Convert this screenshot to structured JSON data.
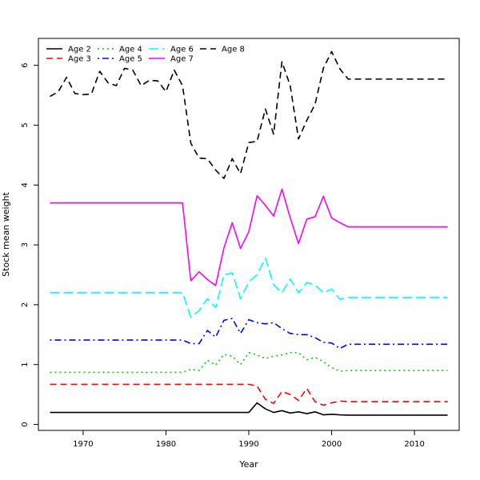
{
  "chart_data": {
    "type": "line",
    "xlabel": "Year",
    "ylabel": "Stock mean weight",
    "xlim": [
      1964.6,
      2015.4
    ],
    "ylim": [
      -0.1,
      6.45
    ],
    "x_ticks": [
      1970,
      1980,
      1990,
      2000,
      2010
    ],
    "x_tick_labels": [
      "1970",
      "1980",
      "1990",
      "2000",
      "2010"
    ],
    "y_ticks": [
      0,
      1,
      2,
      3,
      4,
      5,
      6
    ],
    "y_tick_labels": [
      "0",
      "1",
      "2",
      "3",
      "4",
      "5",
      "6"
    ],
    "legend_position": "top-left",
    "x": [
      1966,
      1967,
      1968,
      1969,
      1970,
      1971,
      1972,
      1973,
      1974,
      1975,
      1976,
      1977,
      1978,
      1979,
      1980,
      1981,
      1982,
      1983,
      1984,
      1985,
      1986,
      1987,
      1988,
      1989,
      1990,
      1991,
      1992,
      1993,
      1994,
      1995,
      1996,
      1997,
      1998,
      1999,
      2000,
      2001,
      2002,
      2003,
      2004,
      2005,
      2006,
      2007,
      2008,
      2009,
      2010,
      2011,
      2012,
      2013,
      2014
    ],
    "series": [
      {
        "name": "Age 2",
        "color": "#000000",
        "dash": "solid",
        "values": [
          0.2,
          0.2,
          0.2,
          0.2,
          0.2,
          0.2,
          0.2,
          0.2,
          0.2,
          0.2,
          0.2,
          0.2,
          0.2,
          0.2,
          0.2,
          0.2,
          0.2,
          0.2,
          0.2,
          0.2,
          0.2,
          0.2,
          0.2,
          0.2,
          0.2,
          0.36,
          0.26,
          0.2,
          0.23,
          0.19,
          0.21,
          0.18,
          0.21,
          0.16,
          0.17,
          0.16,
          0.155,
          0.155,
          0.155,
          0.155,
          0.155,
          0.155,
          0.155,
          0.155,
          0.155,
          0.155,
          0.155,
          0.155,
          0.155
        ]
      },
      {
        "name": "Age 3",
        "color": "#ff0000",
        "dash": "dashed",
        "values": [
          0.67,
          0.67,
          0.67,
          0.67,
          0.67,
          0.67,
          0.67,
          0.67,
          0.67,
          0.67,
          0.67,
          0.67,
          0.67,
          0.67,
          0.67,
          0.67,
          0.67,
          0.67,
          0.67,
          0.67,
          0.67,
          0.67,
          0.67,
          0.67,
          0.67,
          0.64,
          0.42,
          0.35,
          0.55,
          0.5,
          0.4,
          0.6,
          0.38,
          0.32,
          0.36,
          0.39,
          0.38,
          0.38,
          0.38,
          0.38,
          0.38,
          0.38,
          0.38,
          0.38,
          0.38,
          0.38,
          0.38,
          0.38,
          0.38
        ]
      },
      {
        "name": "Age 4",
        "color": "#00cd00",
        "dash": "dotted",
        "values": [
          0.87,
          0.87,
          0.87,
          0.87,
          0.87,
          0.87,
          0.87,
          0.87,
          0.87,
          0.87,
          0.87,
          0.87,
          0.87,
          0.87,
          0.87,
          0.87,
          0.87,
          0.92,
          0.9,
          1.07,
          0.99,
          1.17,
          1.14,
          1.0,
          1.2,
          1.16,
          1.1,
          1.14,
          1.16,
          1.2,
          1.2,
          1.08,
          1.12,
          1.05,
          0.95,
          0.89,
          0.9,
          0.9,
          0.9,
          0.9,
          0.9,
          0.9,
          0.9,
          0.9,
          0.9,
          0.9,
          0.9,
          0.9,
          0.9
        ]
      },
      {
        "name": "Age 5",
        "color": "#0000ff",
        "dash": "dashdot",
        "values": [
          1.41,
          1.41,
          1.41,
          1.41,
          1.41,
          1.41,
          1.41,
          1.41,
          1.41,
          1.41,
          1.41,
          1.41,
          1.41,
          1.41,
          1.41,
          1.41,
          1.41,
          1.35,
          1.35,
          1.57,
          1.46,
          1.74,
          1.77,
          1.52,
          1.75,
          1.7,
          1.68,
          1.7,
          1.6,
          1.52,
          1.5,
          1.5,
          1.45,
          1.37,
          1.36,
          1.27,
          1.34,
          1.34,
          1.34,
          1.34,
          1.34,
          1.34,
          1.34,
          1.34,
          1.34,
          1.34,
          1.34,
          1.34,
          1.34
        ]
      },
      {
        "name": "Age 6",
        "color": "#00ffff",
        "dash": "longdash",
        "values": [
          2.2,
          2.2,
          2.2,
          2.2,
          2.2,
          2.2,
          2.2,
          2.2,
          2.2,
          2.2,
          2.2,
          2.2,
          2.2,
          2.2,
          2.2,
          2.2,
          2.2,
          1.79,
          1.9,
          2.1,
          1.95,
          2.5,
          2.53,
          2.1,
          2.38,
          2.5,
          2.78,
          2.33,
          2.2,
          2.43,
          2.2,
          2.37,
          2.33,
          2.2,
          2.26,
          2.09,
          2.12,
          2.12,
          2.12,
          2.12,
          2.12,
          2.12,
          2.12,
          2.12,
          2.12,
          2.12,
          2.12,
          2.12,
          2.12
        ]
      },
      {
        "name": "Age 7",
        "color": "#ff00ff",
        "dash": "solid",
        "values": [
          3.7,
          3.7,
          3.7,
          3.7,
          3.7,
          3.7,
          3.7,
          3.7,
          3.7,
          3.7,
          3.7,
          3.7,
          3.7,
          3.7,
          3.7,
          3.7,
          3.7,
          2.4,
          2.55,
          2.42,
          2.32,
          2.95,
          3.37,
          2.94,
          3.22,
          3.82,
          3.66,
          3.48,
          3.93,
          3.45,
          3.02,
          3.43,
          3.47,
          3.81,
          3.45,
          3.37,
          3.3,
          3.3,
          3.3,
          3.3,
          3.3,
          3.3,
          3.3,
          3.3,
          3.3,
          3.3,
          3.3,
          3.3,
          3.3
        ]
      },
      {
        "name": "Age 8",
        "color": "#000000",
        "dash": "dashed",
        "values": [
          5.48,
          5.56,
          5.8,
          5.53,
          5.51,
          5.52,
          5.9,
          5.71,
          5.66,
          5.95,
          5.92,
          5.66,
          5.75,
          5.74,
          5.56,
          5.92,
          5.66,
          4.7,
          4.45,
          4.44,
          4.25,
          4.11,
          4.44,
          4.19,
          4.71,
          4.73,
          5.27,
          4.85,
          6.06,
          5.66,
          4.77,
          5.08,
          5.35,
          5.95,
          6.23,
          5.94,
          5.77,
          5.77,
          5.77,
          5.77,
          5.77,
          5.77,
          5.77,
          5.77,
          5.77,
          5.77,
          5.77,
          5.77,
          5.77
        ]
      }
    ]
  }
}
